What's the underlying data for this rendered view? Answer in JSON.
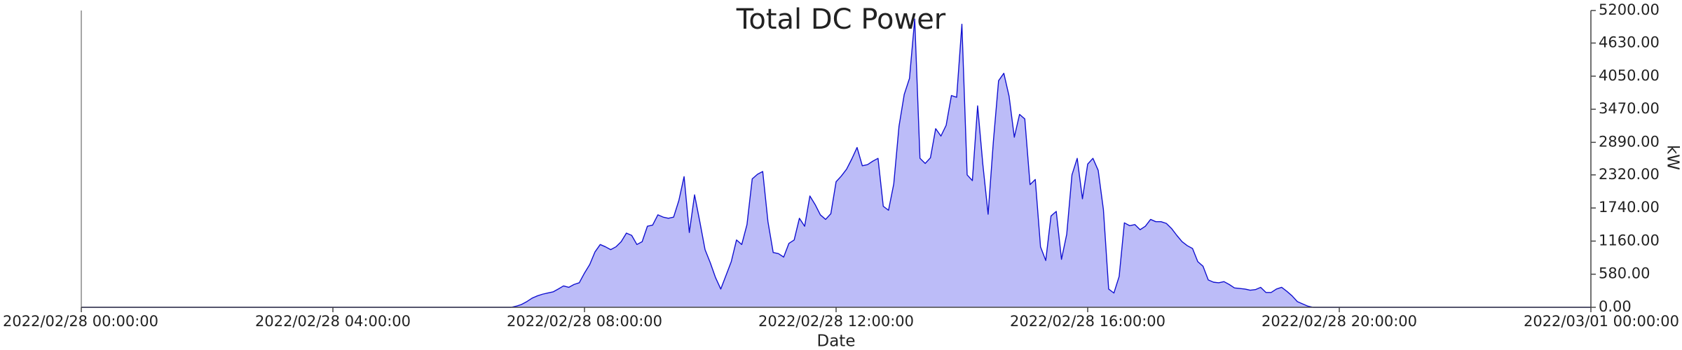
{
  "chart_data": {
    "type": "area",
    "title": "Total DC Power",
    "x_label": "Date",
    "y_label": "kW",
    "color": "#1010d0",
    "fill_color": "#bcbcf8",
    "y_axis_side": "right",
    "xlim": [
      "2022/02/28 00:00:00",
      "2022/03/01 00:00:00"
    ],
    "xticks": [
      "2022/02/28 00:00:00",
      "2022/02/28 04:00:00",
      "2022/02/28 08:00:00",
      "2022/02/28 12:00:00",
      "2022/02/28 16:00:00",
      "2022/02/28 20:00:00",
      "2022/03/01 00:00:00"
    ],
    "ylim": [
      0,
      5200
    ],
    "yticks": [
      {
        "value": 0,
        "label": "0.00"
      },
      {
        "value": 580,
        "label": "580.00"
      },
      {
        "value": 1160,
        "label": "1160.00"
      },
      {
        "value": 1740,
        "label": "1740.00"
      },
      {
        "value": 2320,
        "label": "2320.00"
      },
      {
        "value": 2890,
        "label": "2890.00"
      },
      {
        "value": 3470,
        "label": "3470.00"
      },
      {
        "value": 4050,
        "label": "4050.00"
      },
      {
        "value": 4630,
        "label": "4630.00"
      },
      {
        "value": 5200,
        "label": "5200.00"
      }
    ],
    "x": [
      "2022/02/28 00:00:00",
      "2022/02/28 06:50:00",
      "2022/02/28 06:55:00",
      "2022/02/28 07:00:00",
      "2022/02/28 07:05:00",
      "2022/02/28 07:10:00",
      "2022/02/28 07:15:00",
      "2022/02/28 07:20:00",
      "2022/02/28 07:25:00",
      "2022/02/28 07:30:00",
      "2022/02/28 07:35:00",
      "2022/02/28 07:40:00",
      "2022/02/28 07:45:00",
      "2022/02/28 07:50:00",
      "2022/02/28 07:55:00",
      "2022/02/28 08:00:00",
      "2022/02/28 08:05:00",
      "2022/02/28 08:10:00",
      "2022/02/28 08:15:00",
      "2022/02/28 08:20:00",
      "2022/02/28 08:25:00",
      "2022/02/28 08:30:00",
      "2022/02/28 08:35:00",
      "2022/02/28 08:40:00",
      "2022/02/28 08:45:00",
      "2022/02/28 08:50:00",
      "2022/02/28 08:55:00",
      "2022/02/28 09:00:00",
      "2022/02/28 09:05:00",
      "2022/02/28 09:10:00",
      "2022/02/28 09:15:00",
      "2022/02/28 09:20:00",
      "2022/02/28 09:25:00",
      "2022/02/28 09:30:00",
      "2022/02/28 09:35:00",
      "2022/02/28 09:40:00",
      "2022/02/28 09:45:00",
      "2022/02/28 09:50:00",
      "2022/02/28 09:55:00",
      "2022/02/28 10:00:00",
      "2022/02/28 10:05:00",
      "2022/02/28 10:10:00",
      "2022/02/28 10:15:00",
      "2022/02/28 10:20:00",
      "2022/02/28 10:25:00",
      "2022/02/28 10:30:00",
      "2022/02/28 10:35:00",
      "2022/02/28 10:40:00",
      "2022/02/28 10:45:00",
      "2022/02/28 10:50:00",
      "2022/02/28 10:55:00",
      "2022/02/28 11:00:00",
      "2022/02/28 11:05:00",
      "2022/02/28 11:10:00",
      "2022/02/28 11:15:00",
      "2022/02/28 11:20:00",
      "2022/02/28 11:25:00",
      "2022/02/28 11:30:00",
      "2022/02/28 11:35:00",
      "2022/02/28 11:40:00",
      "2022/02/28 11:45:00",
      "2022/02/28 11:50:00",
      "2022/02/28 11:55:00",
      "2022/02/28 12:00:00",
      "2022/02/28 12:05:00",
      "2022/02/28 12:10:00",
      "2022/02/28 12:15:00",
      "2022/02/28 12:20:00",
      "2022/02/28 12:25:00",
      "2022/02/28 12:30:00",
      "2022/02/28 12:35:00",
      "2022/02/28 12:40:00",
      "2022/02/28 12:45:00",
      "2022/02/28 12:50:00",
      "2022/02/28 12:55:00",
      "2022/02/28 13:00:00",
      "2022/02/28 13:05:00",
      "2022/02/28 13:10:00",
      "2022/02/28 13:15:00",
      "2022/02/28 13:20:00",
      "2022/02/28 13:25:00",
      "2022/02/28 13:30:00",
      "2022/02/28 13:35:00",
      "2022/02/28 13:40:00",
      "2022/02/28 13:45:00",
      "2022/02/28 13:50:00",
      "2022/02/28 13:55:00",
      "2022/02/28 14:00:00",
      "2022/02/28 14:05:00",
      "2022/02/28 14:10:00",
      "2022/02/28 14:15:00",
      "2022/02/28 14:20:00",
      "2022/02/28 14:25:00",
      "2022/02/28 14:30:00",
      "2022/02/28 14:35:00",
      "2022/02/28 14:40:00",
      "2022/02/28 14:45:00",
      "2022/02/28 14:50:00",
      "2022/02/28 14:55:00",
      "2022/02/28 15:00:00",
      "2022/02/28 15:05:00",
      "2022/02/28 15:10:00",
      "2022/02/28 15:15:00",
      "2022/02/28 15:20:00",
      "2022/02/28 15:25:00",
      "2022/02/28 15:30:00",
      "2022/02/28 15:35:00",
      "2022/02/28 15:40:00",
      "2022/02/28 15:45:00",
      "2022/02/28 15:50:00",
      "2022/02/28 15:55:00",
      "2022/02/28 16:00:00",
      "2022/02/28 16:05:00",
      "2022/02/28 16:10:00",
      "2022/02/28 16:15:00",
      "2022/02/28 16:20:00",
      "2022/02/28 16:25:00",
      "2022/02/28 16:30:00",
      "2022/02/28 16:35:00",
      "2022/02/28 16:40:00",
      "2022/02/28 16:45:00",
      "2022/02/28 16:50:00",
      "2022/02/28 16:55:00",
      "2022/02/28 17:00:00",
      "2022/02/28 17:05:00",
      "2022/02/28 17:10:00",
      "2022/02/28 17:15:00",
      "2022/02/28 17:20:00",
      "2022/02/28 17:25:00",
      "2022/02/28 17:30:00",
      "2022/02/28 17:35:00",
      "2022/02/28 17:40:00",
      "2022/02/28 17:45:00",
      "2022/02/28 17:50:00",
      "2022/02/28 17:55:00",
      "2022/02/28 18:00:00",
      "2022/02/28 18:05:00",
      "2022/02/28 18:10:00",
      "2022/02/28 18:15:00",
      "2022/02/28 18:20:00",
      "2022/02/28 18:25:00",
      "2022/02/28 18:30:00",
      "2022/02/28 18:35:00",
      "2022/02/28 18:40:00",
      "2022/02/28 18:45:00",
      "2022/02/28 18:50:00",
      "2022/02/28 18:55:00",
      "2022/02/28 19:00:00",
      "2022/02/28 19:05:00",
      "2022/02/28 19:10:00",
      "2022/02/28 19:15:00",
      "2022/02/28 19:20:00",
      "2022/02/28 19:25:00",
      "2022/02/28 19:30:00",
      "2022/02/28 19:35:00",
      "2022/03/01 00:00:00"
    ],
    "values": [
      0,
      0,
      20,
      50,
      100,
      160,
      200,
      230,
      250,
      270,
      320,
      375,
      350,
      400,
      430,
      600,
      750,
      970,
      1100,
      1060,
      1010,
      1060,
      1150,
      1300,
      1260,
      1100,
      1150,
      1420,
      1440,
      1620,
      1580,
      1560,
      1580,
      1870,
      2290,
      1310,
      1970,
      1500,
      1010,
      780,
      520,
      320,
      560,
      800,
      1180,
      1100,
      1450,
      2250,
      2330,
      2380,
      1500,
      960,
      940,
      880,
      1120,
      1180,
      1560,
      1420,
      1950,
      1800,
      1620,
      1540,
      1640,
      2200,
      2300,
      2420,
      2600,
      2800,
      2480,
      2500,
      2560,
      2610,
      1770,
      1700,
      2160,
      3170,
      3730,
      4010,
      5050,
      2610,
      2520,
      2620,
      3130,
      3000,
      3190,
      3710,
      3680,
      4960,
      2320,
      2220,
      3530,
      2500,
      1630,
      2900,
      3970,
      4100,
      3700,
      2980,
      3380,
      3300,
      2150,
      2240,
      1060,
      820,
      1600,
      1680,
      840,
      1280,
      2320,
      2610,
      1900,
      2510,
      2610,
      2400,
      1710,
      320,
      250,
      540,
      1480,
      1430,
      1450,
      1360,
      1420,
      1540,
      1500,
      1500,
      1470,
      1380,
      1260,
      1150,
      1080,
      1030,
      800,
      720,
      480,
      440,
      430,
      450,
      400,
      340,
      330,
      320,
      300,
      310,
      350,
      260,
      260,
      320,
      350,
      280,
      200,
      100,
      60,
      20,
      0,
      0
    ]
  }
}
